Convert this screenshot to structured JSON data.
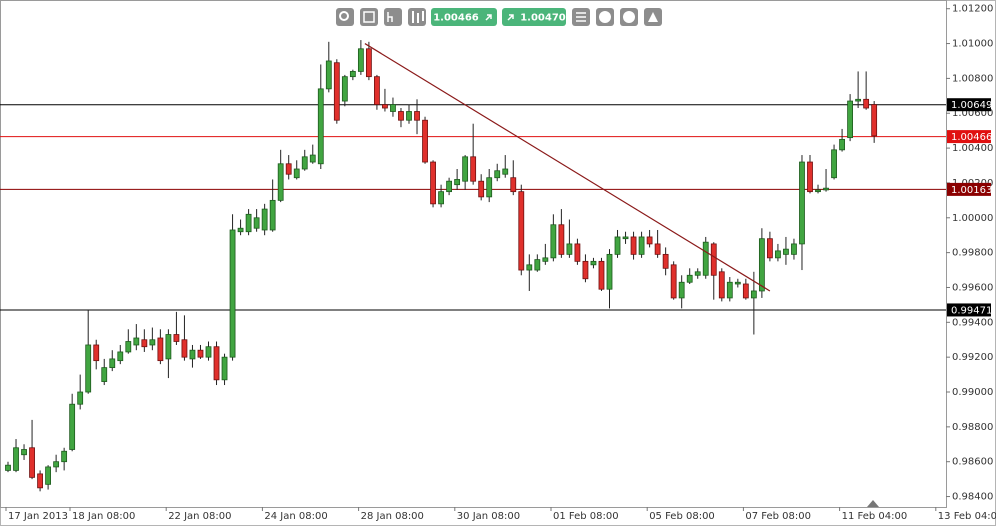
{
  "chart_data": {
    "type": "candlestick",
    "toolbar": {
      "bid": "1.00466",
      "ask": "1.00470"
    },
    "x_labels": [
      "17 Jan 2013",
      "18 Jan 08:00",
      "22 Jan 08:00",
      "24 Jan 08:00",
      "28 Jan 08:00",
      "30 Jan 08:00",
      "01 Feb 08:00",
      "05 Feb 08:00",
      "07 Feb 08:00",
      "11 Feb 04:00",
      "13 Feb 04:00"
    ],
    "up_color": "#41a541",
    "down_color": "#e0302c",
    "ylim": [
      0.9834,
      1.0125
    ],
    "yticks": [
      {
        "value": 1.012,
        "label": "1.01200"
      },
      {
        "value": 1.01,
        "label": "1.01000"
      },
      {
        "value": 1.008,
        "label": "1.00800"
      },
      {
        "value": 1.006,
        "label": "1.00600"
      },
      {
        "value": 1.004,
        "label": "1.00400"
      },
      {
        "value": 1.002,
        "label": "1.00200"
      },
      {
        "value": 1.0,
        "label": "1.00000"
      },
      {
        "value": 0.998,
        "label": "0.99800"
      },
      {
        "value": 0.996,
        "label": "0.99600"
      },
      {
        "value": 0.994,
        "label": "0.99400"
      },
      {
        "value": 0.992,
        "label": "0.99200"
      },
      {
        "value": 0.99,
        "label": "0.99000"
      },
      {
        "value": 0.988,
        "label": "0.98800"
      },
      {
        "value": 0.986,
        "label": "0.98600"
      },
      {
        "value": 0.984,
        "label": "0.98400"
      }
    ],
    "levels": [
      {
        "value": 1.00649,
        "color": "#000000"
      },
      {
        "value": 1.00466,
        "color": "#e01010"
      },
      {
        "value": 1.00163,
        "color": "#8b0000"
      },
      {
        "value": 0.99471,
        "color": "#000000"
      }
    ],
    "trendline": {
      "x": [
        44.5,
        95
      ],
      "y": [
        1.01,
        0.9958
      ],
      "color": "#8b1a1a"
    },
    "open": [
      0.9855,
      0.9855,
      0.9864,
      0.9868,
      0.9853,
      0.9847,
      0.9857,
      0.986,
      0.9867,
      0.9893,
      0.99,
      0.9927,
      0.9906,
      0.9914,
      0.9918,
      0.9923,
      0.9927,
      0.993,
      0.9927,
      0.9931,
      0.9919,
      0.9933,
      0.993,
      0.9919,
      0.9924,
      0.992,
      0.9926,
      0.9907,
      0.992,
      0.9992,
      0.9992,
      0.9994,
      0.9993,
      0.9993,
      1.001,
      1.0031,
      1.0023,
      1.0028,
      1.0032,
      1.0031,
      1.0074,
      1.0089,
      1.0067,
      1.0081,
      1.0084,
      1.0097,
      1.0081,
      1.0065,
      1.0061,
      1.0061,
      1.0056,
      1.0061,
      1.0056,
      1.0032,
      1.0008,
      1.0015,
      1.0019,
      1.0021,
      1.0035,
      1.0021,
      1.0012,
      1.0023,
      1.0025,
      1.0023,
      1.0015,
      0.997,
      0.997,
      0.9975,
      0.9977,
      0.9996,
      0.9979,
      0.9985,
      0.9975,
      0.9973,
      0.9975,
      0.9959,
      0.9979,
      0.9988,
      0.9989,
      0.9979,
      0.9989,
      0.9985,
      0.9979,
      0.9973,
      0.9954,
      0.9963,
      0.9967,
      0.9967,
      0.9985,
      0.9969,
      0.9954,
      0.9962,
      0.9962,
      0.9954,
      0.9958,
      0.9988,
      0.9977,
      0.9979,
      0.9979,
      0.9985,
      1.0032,
      1.0015,
      1.0016,
      1.0023,
      1.0039,
      1.0046,
      1.0067,
      1.0068,
      1.0065
    ],
    "high": [
      0.986,
      0.9873,
      0.987,
      0.9884,
      0.9855,
      0.9858,
      0.9864,
      0.9868,
      0.9899,
      0.991,
      0.9947,
      0.993,
      0.9919,
      0.9924,
      0.9927,
      0.9936,
      0.9939,
      0.9936,
      0.9937,
      0.9936,
      0.9936,
      0.9946,
      0.9944,
      0.9927,
      0.9927,
      0.9929,
      0.9929,
      0.9922,
      1.0002,
      0.9999,
      1.0005,
      1.0005,
      1.0008,
      1.0022,
      1.0039,
      1.0036,
      1.0033,
      1.0039,
      1.0042,
      1.0088,
      1.0101,
      1.0091,
      1.0082,
      1.0085,
      1.0102,
      1.0101,
      1.0082,
      1.0074,
      1.0069,
      1.0063,
      1.0065,
      1.0068,
      1.0058,
      1.0033,
      1.0019,
      1.0023,
      1.0028,
      1.0036,
      1.0054,
      1.0025,
      1.0028,
      1.0031,
      1.0036,
      1.0033,
      1.0019,
      0.9979,
      0.9979,
      0.9985,
      1.0002,
      1.0005,
      0.9999,
      0.9988,
      0.9979,
      0.9977,
      0.9977,
      0.9982,
      0.9993,
      0.9992,
      0.9992,
      0.9992,
      0.9993,
      0.9993,
      0.9983,
      0.9975,
      0.9967,
      0.9971,
      0.9971,
      0.9989,
      0.9986,
      0.9971,
      0.9966,
      0.9965,
      0.9965,
      0.9969,
      0.9994,
      0.9992,
      0.9985,
      0.9989,
      0.9988,
      1.0036,
      1.0036,
      1.0019,
      1.0028,
      1.0042,
      1.0051,
      1.0071,
      1.0084,
      1.0084,
      1.0067
    ],
    "low": [
      0.9854,
      0.9854,
      0.9861,
      0.985,
      0.9843,
      0.9844,
      0.9854,
      0.9855,
      0.9866,
      0.989,
      0.9899,
      0.9913,
      0.9904,
      0.9912,
      0.9916,
      0.9922,
      0.9924,
      0.9923,
      0.9924,
      0.9916,
      0.9908,
      0.9927,
      0.9918,
      0.9914,
      0.9919,
      0.9918,
      0.9904,
      0.9904,
      0.9918,
      0.999,
      0.999,
      0.9992,
      0.999,
      0.9992,
      1.0009,
      1.0022,
      1.0022,
      1.0027,
      1.0031,
      1.0028,
      1.0072,
      1.0054,
      1.0064,
      1.0079,
      1.0082,
      1.0079,
      1.0062,
      1.0061,
      1.0058,
      1.0052,
      1.0054,
      1.0048,
      1.0031,
      1.0006,
      1.0006,
      1.0013,
      1.0016,
      1.0016,
      1.0019,
      1.001,
      1.0009,
      1.0021,
      1.0023,
      1.0013,
      0.9967,
      0.9958,
      0.9969,
      0.9973,
      0.9975,
      0.9977,
      0.9977,
      0.9973,
      0.9963,
      0.9971,
      0.9958,
      0.9948,
      0.9977,
      0.9985,
      0.9976,
      0.9977,
      0.9983,
      0.9977,
      0.9967,
      0.9953,
      0.9948,
      0.9962,
      0.9965,
      0.9965,
      0.9953,
      0.9952,
      0.9952,
      0.996,
      0.9953,
      0.9933,
      0.9954,
      0.9975,
      0.9975,
      0.9973,
      0.9976,
      0.997,
      1.0014,
      1.0014,
      1.0015,
      1.0022,
      1.0038,
      1.0044,
      1.0063,
      1.0062,
      1.0043
    ],
    "close": [
      0.9858,
      0.9868,
      0.9867,
      0.9851,
      0.9845,
      0.9857,
      0.986,
      0.9866,
      0.9893,
      0.99,
      0.9927,
      0.9918,
      0.9914,
      0.9919,
      0.9923,
      0.9929,
      0.9931,
      0.9926,
      0.993,
      0.9918,
      0.9933,
      0.9929,
      0.992,
      0.9924,
      0.992,
      0.9926,
      0.9907,
      0.992,
      0.9993,
      0.9994,
      1.0002,
      1.0,
      1.0005,
      1.001,
      1.0031,
      1.0025,
      1.0028,
      1.0035,
      1.0036,
      1.0074,
      1.009,
      1.0056,
      1.0081,
      1.0084,
      1.0097,
      1.0081,
      1.0065,
      1.0063,
      1.0065,
      1.0056,
      1.0061,
      1.0056,
      1.0032,
      1.0008,
      1.0015,
      1.0021,
      1.0022,
      1.0035,
      1.0021,
      1.0012,
      1.0023,
      1.0027,
      1.0028,
      1.0015,
      0.997,
      0.9973,
      0.9976,
      0.9977,
      0.9996,
      0.9979,
      0.9985,
      0.9975,
      0.9965,
      0.9975,
      0.9959,
      0.9979,
      0.9989,
      0.9989,
      0.9979,
      0.9989,
      0.9985,
      0.9979,
      0.9971,
      0.9954,
      0.9963,
      0.9967,
      0.9969,
      0.9986,
      0.9967,
      0.9954,
      0.9963,
      0.9963,
      0.9954,
      0.9958,
      0.9988,
      0.9977,
      0.9981,
      0.9982,
      0.9985,
      1.0032,
      1.0015,
      1.0016,
      1.0017,
      1.0039,
      1.0045,
      1.0067,
      1.0068,
      1.0063,
      1.0047
    ]
  }
}
